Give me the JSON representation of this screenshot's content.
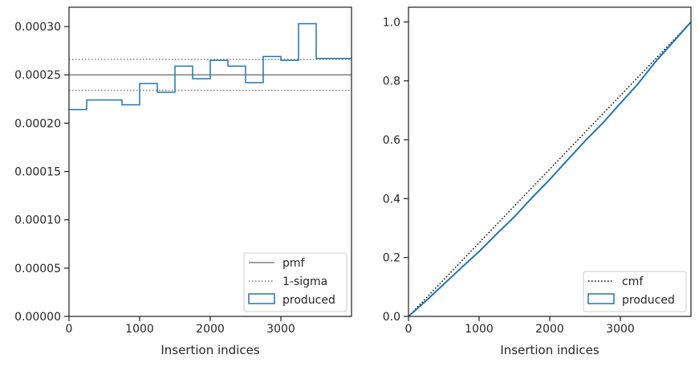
{
  "chart_data": [
    {
      "type": "line",
      "xlabel": "Insertion indices",
      "ylabel": "",
      "xlim": [
        0,
        4000
      ],
      "ylim": [
        0,
        0.00032
      ],
      "xticks": [
        "0",
        "1000",
        "2000",
        "3000"
      ],
      "xtick_values": [
        0,
        1000,
        2000,
        3000
      ],
      "yticks": [
        "0.00000",
        "0.00005",
        "0.00010",
        "0.00015",
        "0.00020",
        "0.00025",
        "0.00030"
      ],
      "ytick_values": [
        0,
        5e-05,
        0.0001,
        0.00015,
        0.0002,
        0.00025,
        0.0003
      ],
      "grid": false,
      "legend_position": "lower-right",
      "series": [
        {
          "name": "pmf",
          "kind": "hline",
          "y": 0.00025,
          "color": "#808080",
          "style": "solid"
        },
        {
          "name": "1-sigma",
          "kind": "hlines",
          "y": [
            0.000266,
            0.000234
          ],
          "color": "#808080",
          "style": "dotted"
        },
        {
          "name": "produced",
          "kind": "step-histogram",
          "color": "#1f77b4",
          "bin_edges": [
            0,
            250,
            500,
            750,
            1000,
            1250,
            1500,
            1750,
            2000,
            2250,
            2500,
            2750,
            3000,
            3250,
            3500,
            3750,
            4000
          ],
          "values": [
            0.000214,
            0.000224,
            0.000224,
            0.000219,
            0.000241,
            0.000232,
            0.000259,
            0.000246,
            0.000265,
            0.000259,
            0.000242,
            0.000269,
            0.000265,
            0.000303,
            0.000267,
            0.000267
          ]
        }
      ]
    },
    {
      "type": "line",
      "xlabel": "Insertion indices",
      "ylabel": "",
      "xlim": [
        0,
        4000
      ],
      "ylim": [
        0,
        1.05
      ],
      "xticks": [
        "0",
        "1000",
        "2000",
        "3000"
      ],
      "xtick_values": [
        0,
        1000,
        2000,
        3000
      ],
      "yticks": [
        "0.0",
        "0.2",
        "0.4",
        "0.6",
        "0.8",
        "1.0"
      ],
      "ytick_values": [
        0,
        0.2,
        0.4,
        0.6,
        0.8,
        1.0
      ],
      "grid": false,
      "legend_position": "lower-right",
      "series": [
        {
          "name": "cmf",
          "kind": "line",
          "x": [
            0,
            4000
          ],
          "y": [
            0,
            1.0
          ],
          "color": "#000000",
          "style": "dotted"
        },
        {
          "name": "produced",
          "kind": "cumulative-step",
          "color": "#1f77b4",
          "x": [
            0,
            250,
            500,
            750,
            1000,
            1250,
            1500,
            1750,
            2000,
            2250,
            2500,
            2750,
            3000,
            3250,
            3500,
            3750,
            4000
          ],
          "y": [
            0,
            0.0535,
            0.1095,
            0.1655,
            0.2203,
            0.2805,
            0.3385,
            0.4033,
            0.4648,
            0.531,
            0.5958,
            0.6563,
            0.7235,
            0.7898,
            0.8655,
            0.9323,
            1.0
          ]
        }
      ]
    }
  ]
}
